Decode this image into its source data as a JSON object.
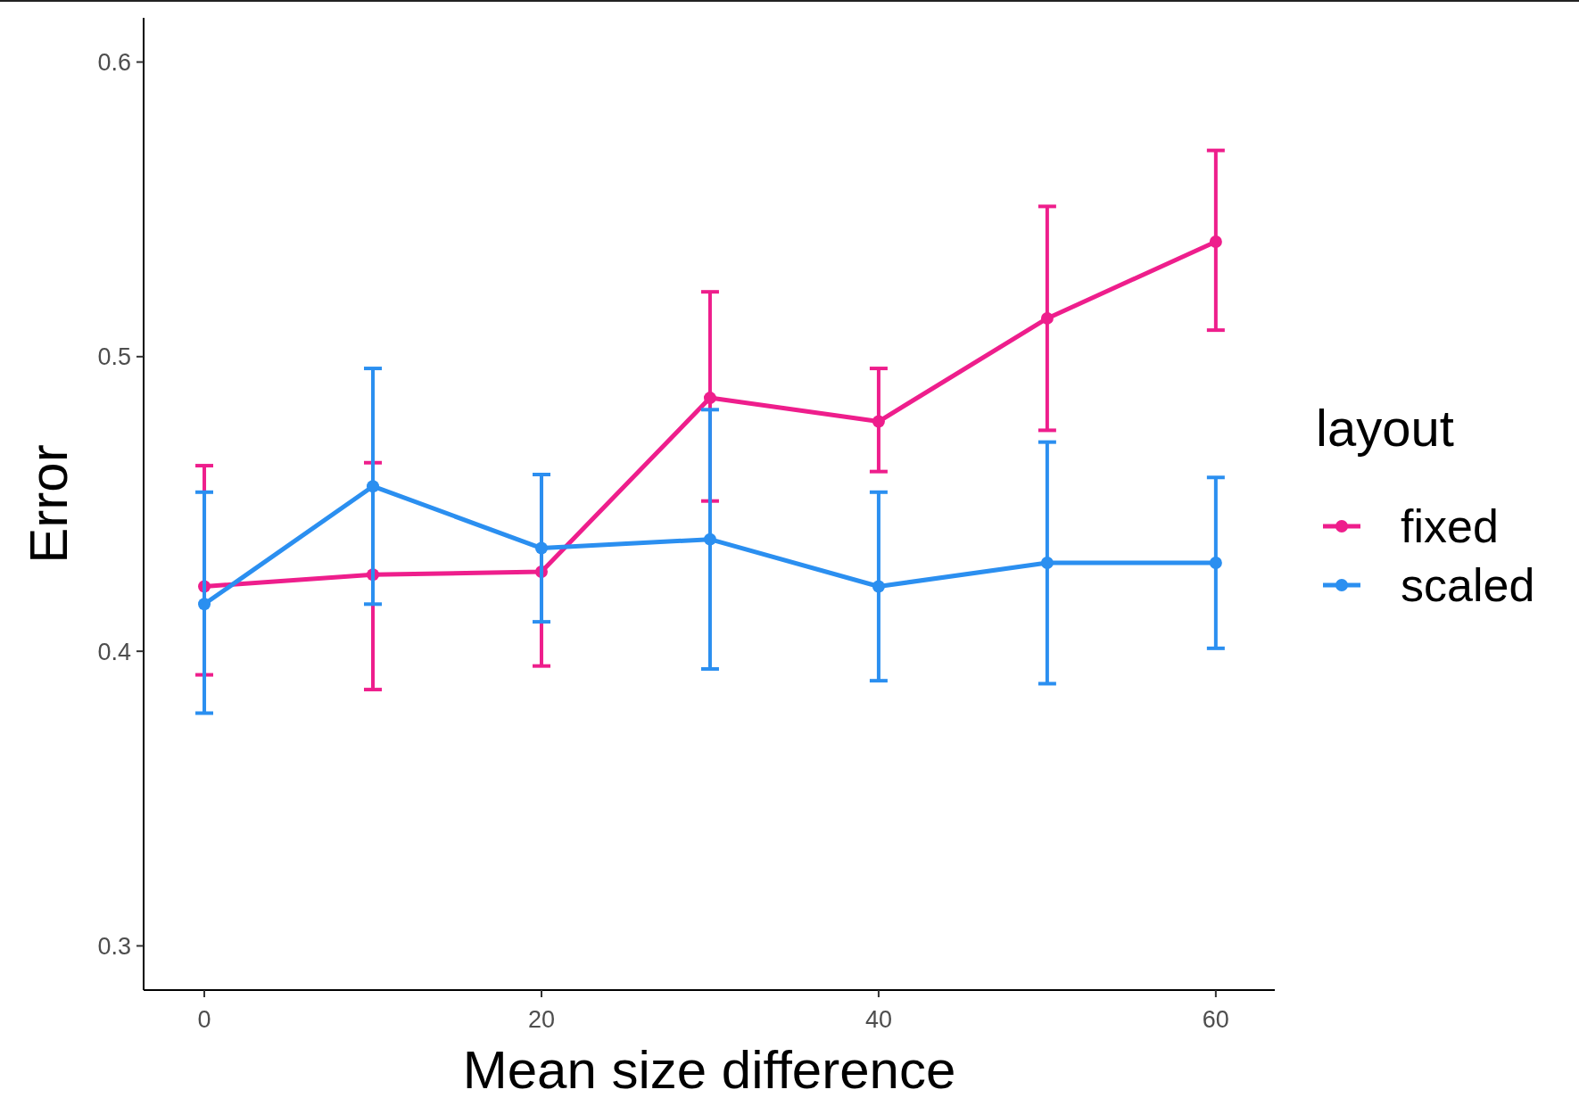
{
  "chart_data": {
    "type": "line",
    "xlabel": "Mean size difference",
    "ylabel": "Error",
    "legend_title": "layout",
    "legend": "right",
    "grid": false,
    "marker": "circle",
    "line_style": "solid",
    "x": [
      0,
      10,
      20,
      30,
      40,
      50,
      60
    ],
    "xlim": [
      -3.6,
      63.5
    ],
    "xticks": [
      0,
      20,
      40,
      60
    ],
    "ylim": [
      0.285,
      0.615
    ],
    "yticks": [
      0.3,
      0.4,
      0.5,
      0.6
    ],
    "series": [
      {
        "name": "fixed",
        "color": "#ee1e8c",
        "values": [
          0.422,
          0.426,
          0.427,
          0.486,
          0.478,
          0.513,
          0.539
        ],
        "errors": [
          [
            0.392,
            0.463
          ],
          [
            0.387,
            0.464
          ],
          [
            0.395,
            0.46
          ],
          [
            0.451,
            0.522
          ],
          [
            0.461,
            0.496
          ],
          [
            0.475,
            0.551
          ],
          [
            0.509,
            0.57
          ]
        ]
      },
      {
        "name": "scaled",
        "color": "#2b8ff0",
        "values": [
          0.416,
          0.456,
          0.435,
          0.438,
          0.422,
          0.43,
          0.43
        ],
        "errors": [
          [
            0.379,
            0.454
          ],
          [
            0.416,
            0.496
          ],
          [
            0.41,
            0.46
          ],
          [
            0.394,
            0.482
          ],
          [
            0.39,
            0.454
          ],
          [
            0.389,
            0.471
          ],
          [
            0.401,
            0.459
          ]
        ]
      }
    ]
  }
}
